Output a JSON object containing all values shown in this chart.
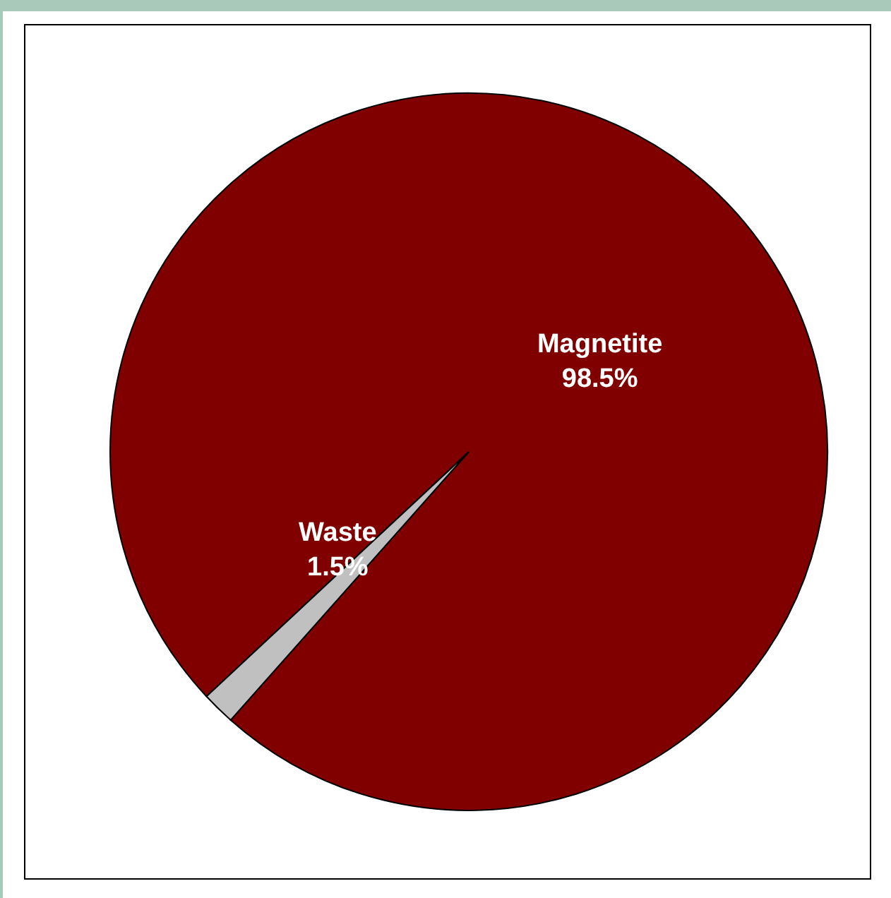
{
  "chart_data": {
    "type": "pie",
    "categories": [
      "Magnetite",
      "Waste"
    ],
    "values": [
      98.5,
      1.5
    ],
    "colors": [
      "#800000",
      "#c0c0c0"
    ],
    "value_labels": [
      "98.5%",
      "1.5%"
    ]
  }
}
